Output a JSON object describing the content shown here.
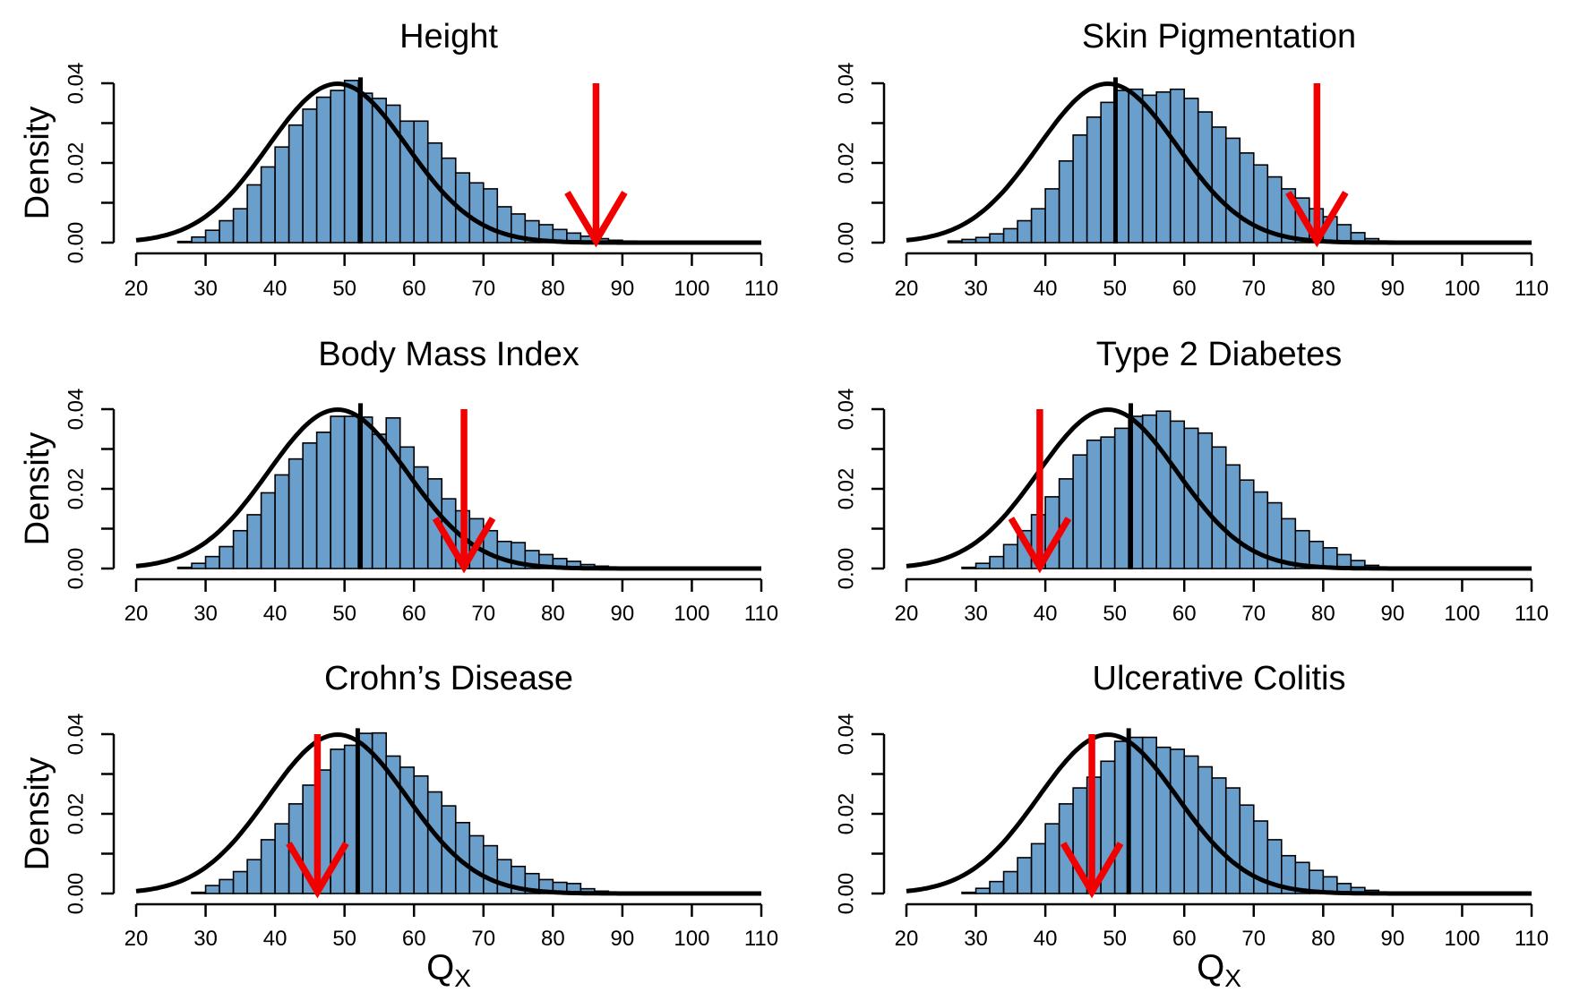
{
  "chart_data": [
    {
      "type": "bar",
      "title": "Height",
      "ylabel": "Density",
      "xlabel": "",
      "xlim": [
        20,
        110
      ],
      "ylim": [
        0,
        0.04
      ],
      "xticks": [
        20,
        30,
        40,
        50,
        60,
        70,
        80,
        90,
        100,
        110
      ],
      "yticks": [
        "0.00",
        "0.02",
        "0.04"
      ],
      "bin_start": 20,
      "bin_width": 2,
      "values": [
        0,
        0,
        0,
        0.0003,
        0.0014,
        0.0031,
        0.0055,
        0.0085,
        0.0145,
        0.019,
        0.024,
        0.0295,
        0.0335,
        0.0365,
        0.0382,
        0.0407,
        0.0375,
        0.0362,
        0.0345,
        0.0305,
        0.0305,
        0.025,
        0.0212,
        0.0175,
        0.015,
        0.0135,
        0.009,
        0.0072,
        0.0055,
        0.0045,
        0.0033,
        0.0024,
        0.0016,
        0.001,
        0.0006,
        0.0004,
        0.0002,
        0.0001
      ],
      "curve": {
        "mean": 49,
        "sd": 10
      },
      "mean_line": 52.3,
      "arrow_x": 86.2
    },
    {
      "type": "bar",
      "title": "Skin Pigmentation",
      "ylabel": "",
      "xlabel": "",
      "xlim": [
        20,
        110
      ],
      "ylim": [
        0,
        0.04
      ],
      "xticks": [
        20,
        30,
        40,
        50,
        60,
        70,
        80,
        90,
        100,
        110
      ],
      "yticks": [
        "0.00",
        "0.02",
        "0.04"
      ],
      "bin_start": 20,
      "bin_width": 2,
      "values": [
        0,
        0,
        0,
        0.0004,
        0.0008,
        0.0013,
        0.0022,
        0.0035,
        0.0055,
        0.0085,
        0.0135,
        0.0205,
        0.027,
        0.0315,
        0.0352,
        0.0382,
        0.0385,
        0.037,
        0.0378,
        0.0385,
        0.0362,
        0.0328,
        0.029,
        0.0262,
        0.0225,
        0.0195,
        0.0165,
        0.0135,
        0.0112,
        0.0085,
        0.0065,
        0.0045,
        0.0025,
        0.001,
        0.0004,
        0.0002,
        0.0001
      ],
      "curve": {
        "mean": 49,
        "sd": 10
      },
      "mean_line": 50.1,
      "arrow_x": 79.1
    },
    {
      "type": "bar",
      "title": "Body Mass Index",
      "ylabel": "Density",
      "xlabel": "",
      "xlim": [
        20,
        110
      ],
      "ylim": [
        0,
        0.04
      ],
      "xticks": [
        20,
        30,
        40,
        50,
        60,
        70,
        80,
        90,
        100,
        110
      ],
      "yticks": [
        "0.00",
        "0.02",
        "0.04"
      ],
      "bin_start": 20,
      "bin_width": 2,
      "values": [
        0,
        0,
        0,
        0.0003,
        0.0013,
        0.003,
        0.0055,
        0.0095,
        0.0135,
        0.019,
        0.0235,
        0.0275,
        0.0315,
        0.0342,
        0.0382,
        0.0382,
        0.038,
        0.0337,
        0.0378,
        0.0305,
        0.0255,
        0.0225,
        0.0175,
        0.0145,
        0.0125,
        0.0095,
        0.0068,
        0.0065,
        0.0045,
        0.0035,
        0.0025,
        0.0018,
        0.001,
        0.0006,
        0.0003,
        0.0002,
        0.0001
      ],
      "curve": {
        "mean": 49,
        "sd": 10
      },
      "mean_line": 52.3,
      "arrow_x": 67.2
    },
    {
      "type": "bar",
      "title": "Type 2 Diabetes",
      "ylabel": "",
      "xlabel": "",
      "xlim": [
        20,
        110
      ],
      "ylim": [
        0,
        0.04
      ],
      "xticks": [
        20,
        30,
        40,
        50,
        60,
        70,
        80,
        90,
        100,
        110
      ],
      "yticks": [
        "0.00",
        "0.02",
        "0.04"
      ],
      "bin_start": 20,
      "bin_width": 2,
      "values": [
        0,
        0,
        0,
        0,
        0.0003,
        0.0013,
        0.003,
        0.006,
        0.0095,
        0.0135,
        0.018,
        0.0225,
        0.0285,
        0.0322,
        0.033,
        0.0352,
        0.0382,
        0.0385,
        0.0395,
        0.037,
        0.0352,
        0.034,
        0.0305,
        0.026,
        0.0222,
        0.0192,
        0.0165,
        0.0125,
        0.0095,
        0.0068,
        0.0052,
        0.0035,
        0.002,
        0.0008,
        0.0003,
        0.0001
      ],
      "curve": {
        "mean": 49,
        "sd": 10
      },
      "mean_line": 52.3,
      "arrow_x": 39.2
    },
    {
      "type": "bar",
      "title": "Crohn’s Disease",
      "ylabel": "Density",
      "xlabel": "Q",
      "xlabel_sub": "X",
      "xlim": [
        20,
        110
      ],
      "ylim": [
        0,
        0.04
      ],
      "xticks": [
        20,
        30,
        40,
        50,
        60,
        70,
        80,
        90,
        100,
        110
      ],
      "yticks": [
        "0.00",
        "0.02",
        "0.04"
      ],
      "bin_start": 20,
      "bin_width": 2,
      "values": [
        0,
        0,
        0,
        0,
        0.0003,
        0.002,
        0.0035,
        0.0055,
        0.0085,
        0.0135,
        0.0175,
        0.0225,
        0.0272,
        0.031,
        0.0362,
        0.0372,
        0.0402,
        0.0403,
        0.0345,
        0.0317,
        0.0295,
        0.0255,
        0.022,
        0.0178,
        0.0145,
        0.012,
        0.0085,
        0.0068,
        0.005,
        0.0035,
        0.0028,
        0.0025,
        0.0012,
        0.0006,
        0.0003,
        0.0001
      ],
      "curve": {
        "mean": 49,
        "sd": 10
      },
      "mean_line": 51.9,
      "arrow_x": 46.1
    },
    {
      "type": "bar",
      "title": "Ulcerative Colitis",
      "ylabel": "",
      "xlabel": "Q",
      "xlabel_sub": "X",
      "xlim": [
        20,
        110
      ],
      "ylim": [
        0,
        0.04
      ],
      "xticks": [
        20,
        30,
        40,
        50,
        60,
        70,
        80,
        90,
        100,
        110
      ],
      "yticks": [
        "0.00",
        "0.02",
        "0.04"
      ],
      "bin_start": 20,
      "bin_width": 2,
      "values": [
        0,
        0,
        0,
        0,
        0.0003,
        0.0013,
        0.003,
        0.0055,
        0.009,
        0.0125,
        0.0175,
        0.0225,
        0.0265,
        0.0292,
        0.0332,
        0.0382,
        0.0392,
        0.0392,
        0.0367,
        0.0362,
        0.0345,
        0.0318,
        0.029,
        0.0265,
        0.0222,
        0.0182,
        0.0135,
        0.0095,
        0.0078,
        0.0058,
        0.0042,
        0.0025,
        0.0015,
        0.0008,
        0.0003,
        0.0001
      ],
      "curve": {
        "mean": 49,
        "sd": 10
      },
      "mean_line": 52.0,
      "arrow_x": 46.7
    }
  ]
}
